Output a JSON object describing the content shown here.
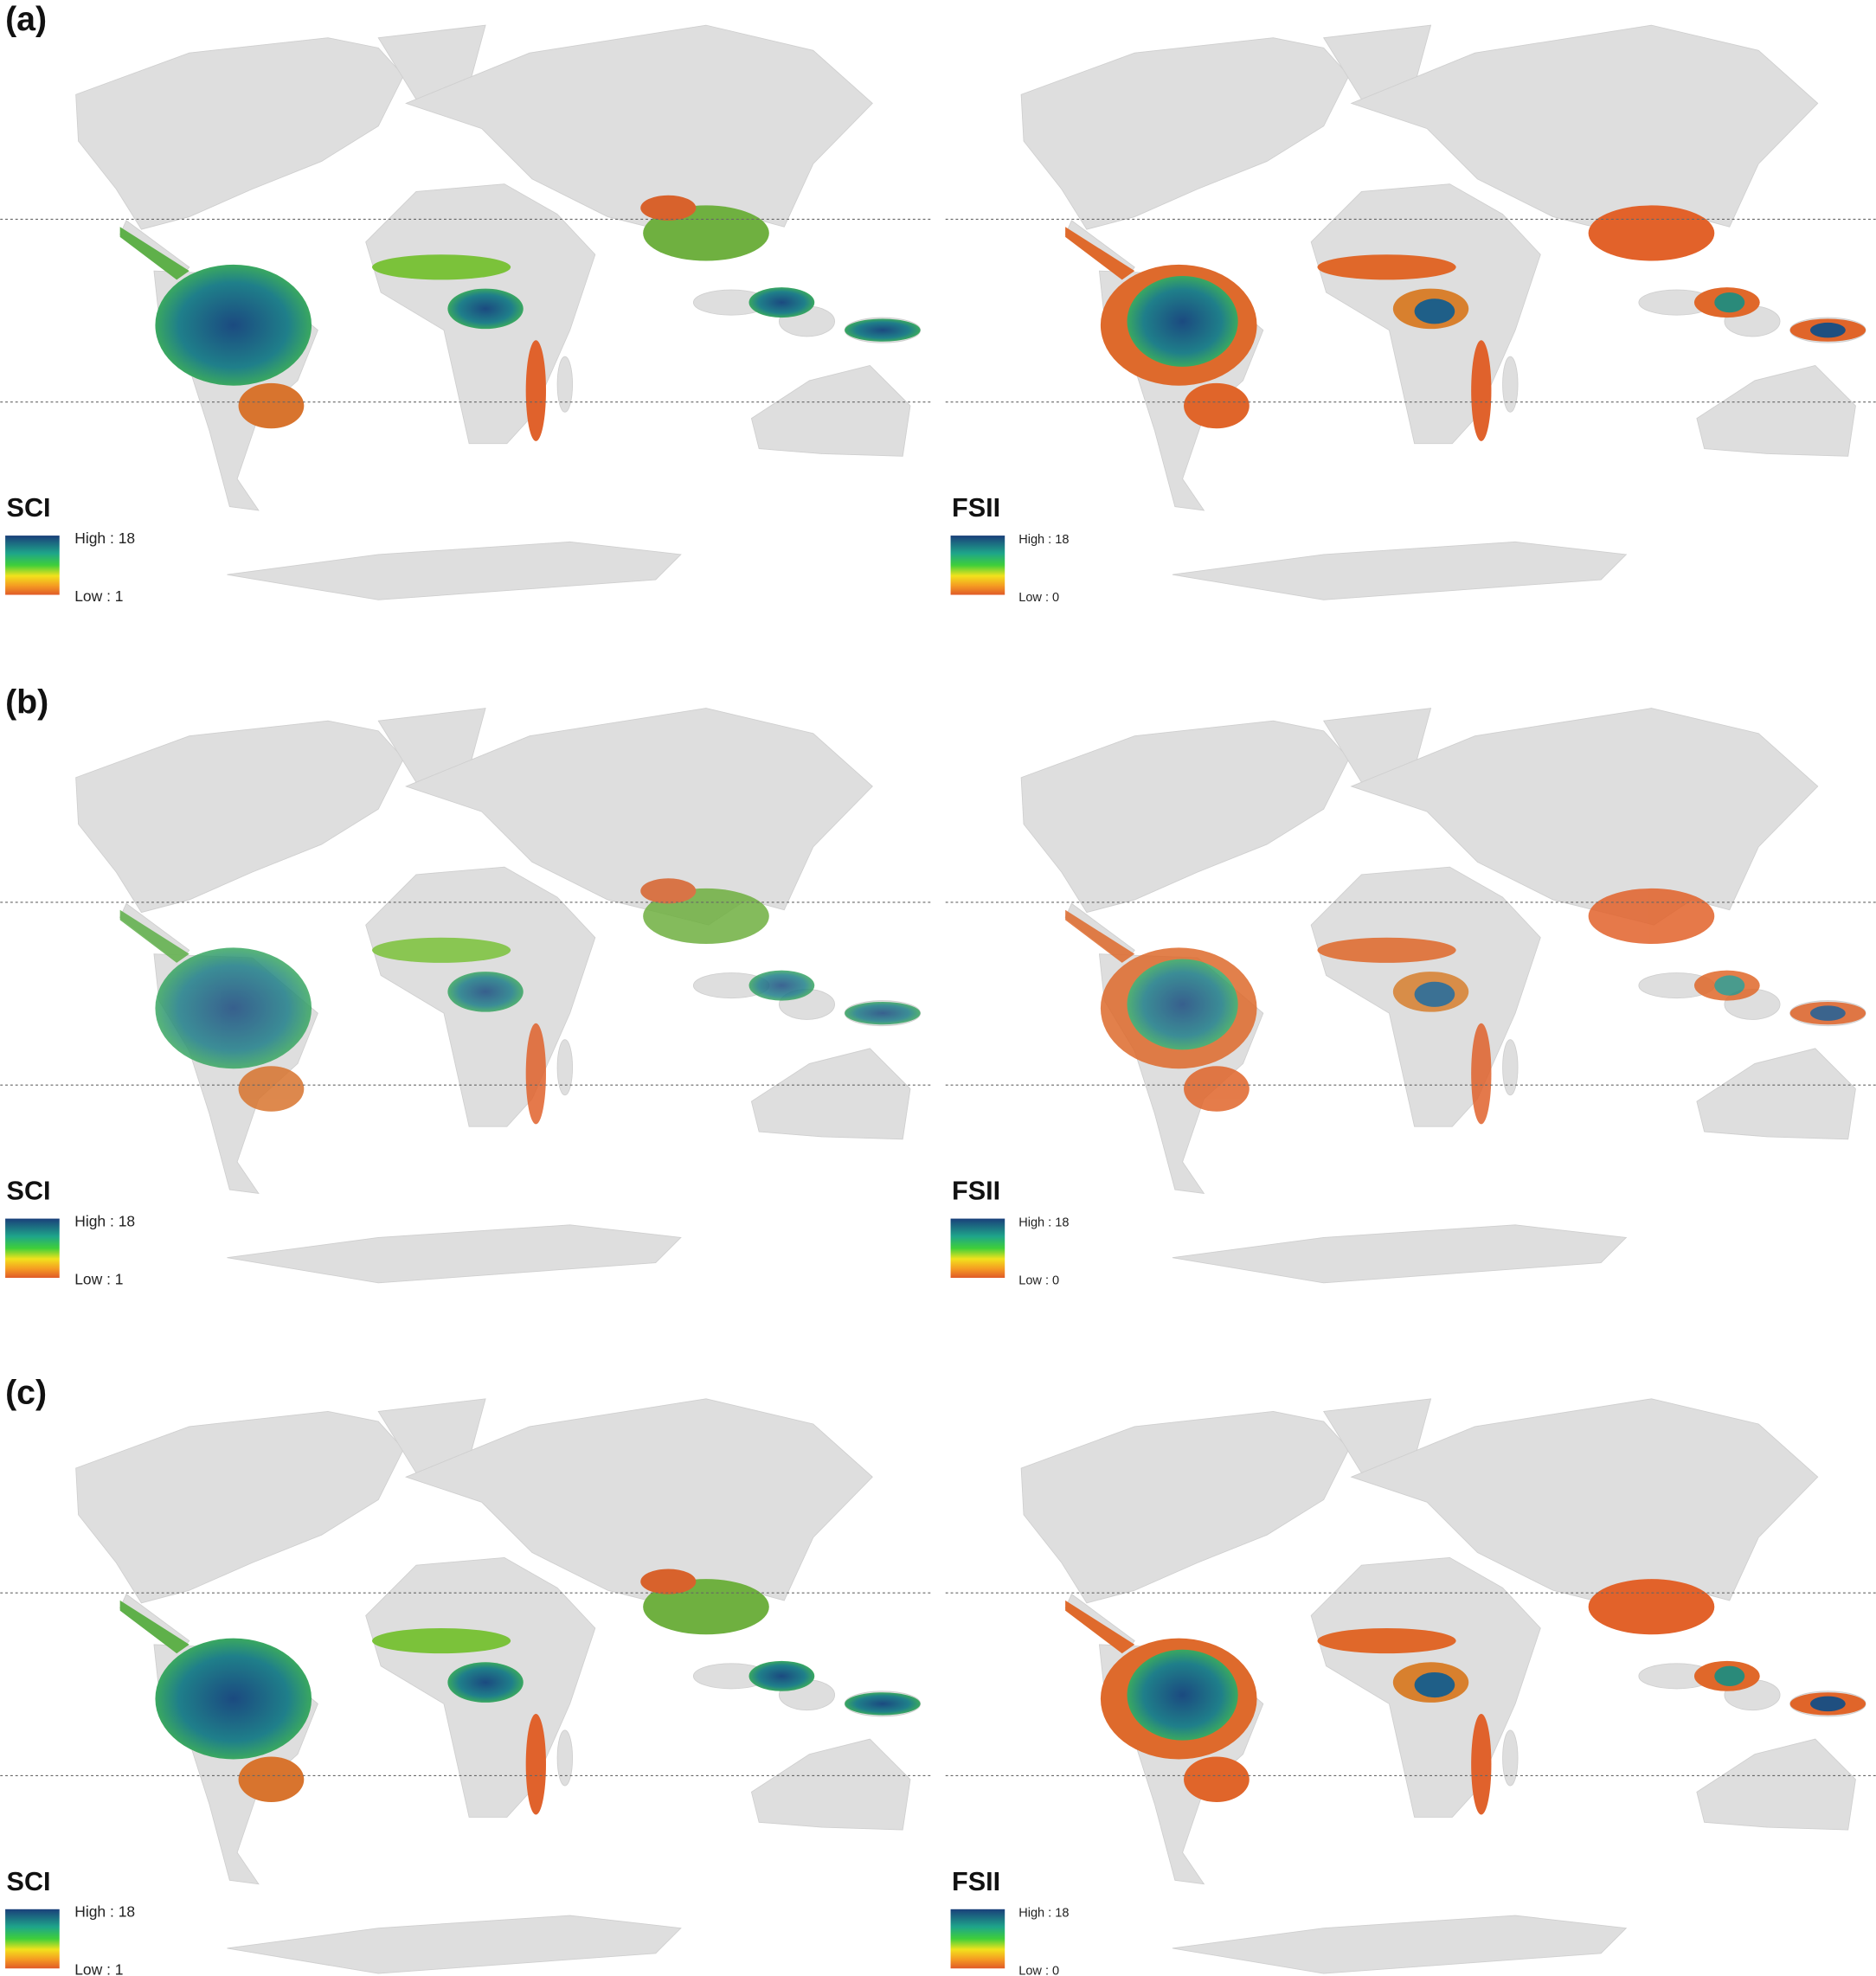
{
  "panels": [
    {
      "label": "(a)",
      "maps": [
        {
          "legend_title": "SCI",
          "high_label": "High : 18",
          "low_label": "Low : 1"
        },
        {
          "legend_title": "FSII",
          "high_label": "High : 18",
          "low_label": "Low : 0"
        }
      ]
    },
    {
      "label": "(b)",
      "maps": [
        {
          "legend_title": "SCI",
          "high_label": "High : 18",
          "low_label": "Low : 1"
        },
        {
          "legend_title": "FSII",
          "high_label": "High : 18",
          "low_label": "Low : 0"
        }
      ]
    },
    {
      "label": "(c)",
      "maps": [
        {
          "legend_title": "SCI",
          "high_label": "High : 18",
          "low_label": "Low : 1"
        },
        {
          "legend_title": "FSII",
          "high_label": "High : 18",
          "low_label": "Low : 0"
        }
      ]
    }
  ]
}
